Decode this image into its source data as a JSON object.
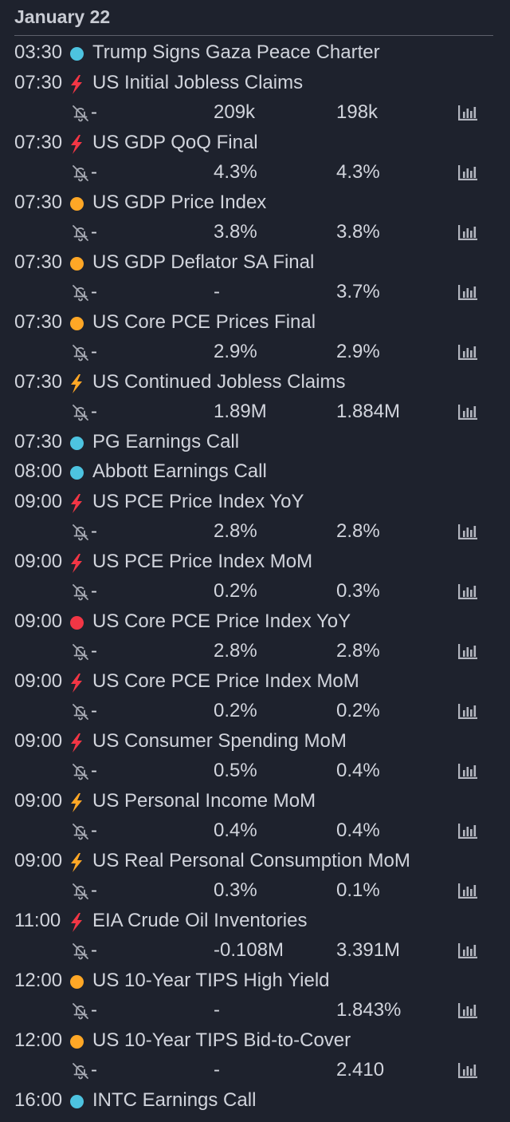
{
  "date_header": "January 22",
  "colors": {
    "background": "#1e222d",
    "text": "#d1d4dc",
    "high_impact_red": "#f23645",
    "medium_orange": "#ffa726",
    "low_cyan": "#4dc3e0"
  },
  "events": [
    {
      "time": "03:30",
      "marker": "cyan-dot",
      "title": "Trump Signs Gaza Peace Charter"
    },
    {
      "time": "07:30",
      "marker": "red-bolt",
      "title": "US Initial Jobless Claims",
      "actual": "-",
      "forecast": "209k",
      "previous": "198k"
    },
    {
      "time": "07:30",
      "marker": "red-bolt",
      "title": "US GDP QoQ Final",
      "actual": "-",
      "forecast": "4.3%",
      "previous": "4.3%"
    },
    {
      "time": "07:30",
      "marker": "orange-dot",
      "title": "US GDP Price Index",
      "actual": "-",
      "forecast": "3.8%",
      "previous": "3.8%"
    },
    {
      "time": "07:30",
      "marker": "orange-dot",
      "title": "US GDP Deflator SA Final",
      "actual": "-",
      "forecast": "-",
      "previous": "3.7%"
    },
    {
      "time": "07:30",
      "marker": "orange-dot",
      "title": "US Core PCE Prices Final",
      "actual": "-",
      "forecast": "2.9%",
      "previous": "2.9%"
    },
    {
      "time": "07:30",
      "marker": "orange-bolt",
      "title": "US Continued Jobless Claims",
      "actual": "-",
      "forecast": "1.89M",
      "previous": "1.884M"
    },
    {
      "time": "07:30",
      "marker": "cyan-dot",
      "title": "PG Earnings Call"
    },
    {
      "time": "08:00",
      "marker": "cyan-dot",
      "title": "Abbott Earnings Call"
    },
    {
      "time": "09:00",
      "marker": "red-bolt",
      "title": "US PCE Price Index YoY",
      "actual": "-",
      "forecast": "2.8%",
      "previous": "2.8%"
    },
    {
      "time": "09:00",
      "marker": "red-bolt",
      "title": "US PCE Price Index MoM",
      "actual": "-",
      "forecast": "0.2%",
      "previous": "0.3%"
    },
    {
      "time": "09:00",
      "marker": "red-dot",
      "title": "US Core PCE Price Index YoY",
      "actual": "-",
      "forecast": "2.8%",
      "previous": "2.8%"
    },
    {
      "time": "09:00",
      "marker": "red-bolt",
      "title": "US Core PCE Price Index MoM",
      "actual": "-",
      "forecast": "0.2%",
      "previous": "0.2%"
    },
    {
      "time": "09:00",
      "marker": "red-bolt",
      "title": "US Consumer Spending MoM",
      "actual": "-",
      "forecast": "0.5%",
      "previous": "0.4%"
    },
    {
      "time": "09:00",
      "marker": "orange-bolt",
      "title": "US Personal Income MoM",
      "actual": "-",
      "forecast": "0.4%",
      "previous": "0.4%"
    },
    {
      "time": "09:00",
      "marker": "orange-bolt",
      "title": "US Real Personal Consumption MoM",
      "actual": "-",
      "forecast": "0.3%",
      "previous": "0.1%"
    },
    {
      "time": "11:00",
      "marker": "red-bolt",
      "title": "EIA Crude Oil Inventories",
      "actual": "-",
      "forecast": "-0.108M",
      "previous": "3.391M"
    },
    {
      "time": "12:00",
      "marker": "orange-dot",
      "title": "US 10-Year TIPS High Yield",
      "actual": "-",
      "forecast": "-",
      "previous": "1.843%"
    },
    {
      "time": "12:00",
      "marker": "orange-dot",
      "title": "US 10-Year TIPS Bid-to-Cover",
      "actual": "-",
      "forecast": "-",
      "previous": "2.410"
    },
    {
      "time": "16:00",
      "marker": "cyan-dot",
      "title": "INTC Earnings Call"
    }
  ]
}
